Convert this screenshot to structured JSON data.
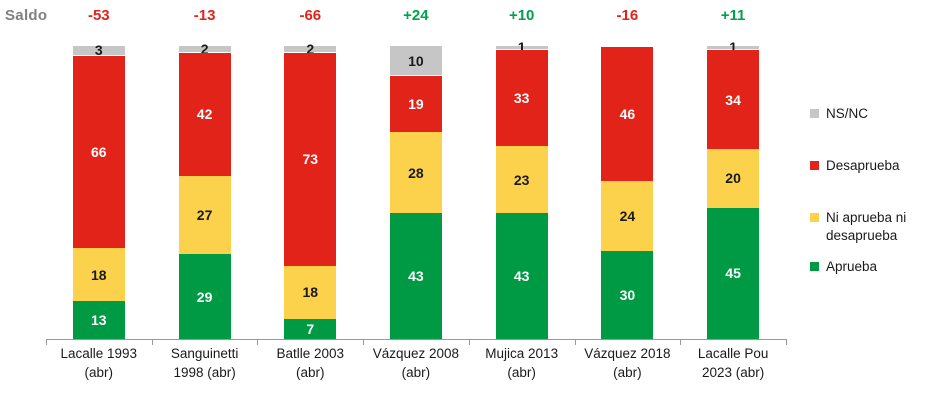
{
  "palette": {
    "aprueba": "#009a44",
    "ni_aprueba": "#fcd24c",
    "desaprueba": "#e2231a",
    "nsnc": "#c6c6c6",
    "saldo_negative": "#e2231a",
    "saldo_positive": "#00a14b",
    "saldo_label_color": "#808080",
    "axis": "#999999",
    "text": "#1a1a1a"
  },
  "saldo": {
    "label": "Saldo",
    "values": [
      "-53",
      "-13",
      "-66",
      "+24",
      "+10",
      "-16",
      "+11"
    ]
  },
  "legend": {
    "items": [
      {
        "label": "NS/NC",
        "color_key": "nsnc"
      },
      {
        "label": "Desaprueba",
        "color_key": "desaprueba"
      },
      {
        "label": "Ni aprueba ni desaprueba",
        "color_key": "ni_aprueba"
      },
      {
        "label": "Aprueba",
        "color_key": "aprueba"
      }
    ]
  },
  "chart_data": {
    "type": "bar",
    "stacked": true,
    "title": "",
    "ylim": [
      0,
      100
    ],
    "grid": false,
    "legend_position": "right",
    "categories": [
      "Lacalle 1993 (abr)",
      "Sanguinetti 1998 (abr)",
      "Batlle 2003 (abr)",
      "Vázquez 2008 (abr)",
      "Mujica 2013 (abr)",
      "Vázquez 2018 (abr)",
      "Lacalle Pou 2023 (abr)"
    ],
    "category_lines": [
      [
        "Lacalle 1993",
        "(abr)"
      ],
      [
        "Sanguinetti",
        "1998 (abr)"
      ],
      [
        "Batlle 2003",
        "(abr)"
      ],
      [
        "Vázquez 2008",
        "(abr)"
      ],
      [
        "Mujica 2013",
        "(abr)"
      ],
      [
        "Vázquez 2018",
        "(abr)"
      ],
      [
        "Lacalle Pou",
        "2023 (abr)"
      ]
    ],
    "series": [
      {
        "name": "Aprueba",
        "color_key": "aprueba",
        "label_color": "#ffffff",
        "values": [
          13,
          29,
          7,
          43,
          43,
          30,
          45
        ]
      },
      {
        "name": "Ni aprueba ni desaprueba",
        "color_key": "ni_aprueba",
        "label_color": "#1a1a1a",
        "values": [
          18,
          27,
          18,
          28,
          23,
          24,
          20
        ]
      },
      {
        "name": "Desaprueba",
        "color_key": "desaprueba",
        "label_color": "#ffffff",
        "values": [
          66,
          42,
          73,
          19,
          33,
          46,
          34
        ]
      },
      {
        "name": "NS/NC",
        "color_key": "nsnc",
        "label_color": "#1a1a1a",
        "values": [
          3,
          2,
          2,
          10,
          1,
          0,
          1
        ]
      }
    ],
    "saldo_values": [
      "-53",
      "-13",
      "-66",
      "+24",
      "+10",
      "-16",
      "+11"
    ]
  }
}
